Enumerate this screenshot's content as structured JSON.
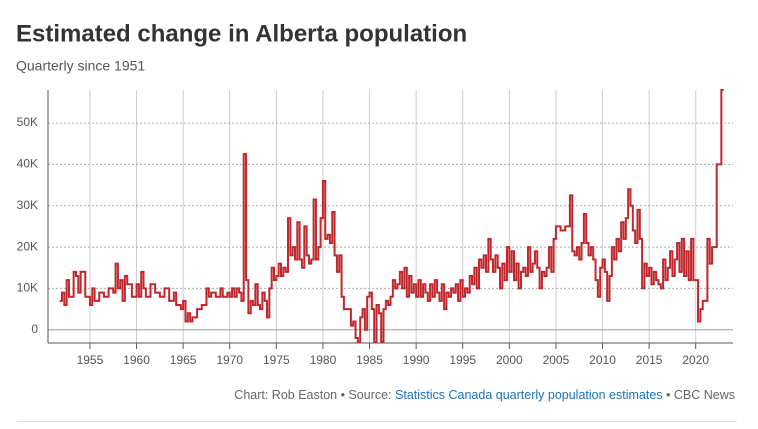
{
  "chart_data": {
    "type": "step-line",
    "title": "Estimated change in Alberta population",
    "subtitle": "Quarterly since 1951",
    "credit_prefix": "Chart: Rob Easton • Source:",
    "source_link": "Statistics Canada quarterly population estimates",
    "credit_suffix": "• CBC News",
    "color": "#c0272d",
    "grid": true,
    "xlim": [
      1950.5,
      2024
    ],
    "xticks": [
      1955,
      1960,
      1965,
      1970,
      1975,
      1980,
      1985,
      1990,
      1995,
      2000,
      2005,
      2010,
      2015,
      2020
    ],
    "ylim": [
      -3200,
      58000
    ],
    "yticks": [
      0,
      {
        "value": 10000,
        "label": "10K"
      },
      {
        "value": 20000,
        "label": "20K"
      },
      {
        "value": 30000,
        "label": "30K"
      },
      {
        "value": 40000,
        "label": "40K"
      },
      {
        "value": 50000,
        "label": "50K"
      }
    ],
    "x": [
      1951.75,
      1952,
      1952.25,
      1952.5,
      1952.75,
      1953,
      1953.25,
      1953.5,
      1953.75,
      1954,
      1954.5,
      1955,
      1955.25,
      1955.5,
      1956,
      1956.5,
      1957,
      1957.5,
      1957.75,
      1958,
      1958.25,
      1958.5,
      1958.75,
      1959,
      1959.5,
      1960,
      1960.25,
      1960.5,
      1960.75,
      1961,
      1961.5,
      1962,
      1962.5,
      1963,
      1963.5,
      1964,
      1964.25,
      1964.75,
      1965,
      1965.25,
      1965.5,
      1965.75,
      1966,
      1966.5,
      1967,
      1967.5,
      1967.75,
      1968,
      1968.5,
      1969,
      1969.25,
      1969.75,
      1970,
      1970.25,
      1970.5,
      1970.75,
      1971,
      1971.25,
      1971.5,
      1971.75,
      1972,
      1972.25,
      1972.5,
      1972.75,
      1973,
      1973.25,
      1973.5,
      1973.75,
      1974,
      1974.25,
      1974.5,
      1974.75,
      1975,
      1975.25,
      1975.5,
      1975.75,
      1976,
      1976.25,
      1976.5,
      1976.75,
      1977,
      1977.25,
      1977.5,
      1977.75,
      1978,
      1978.25,
      1978.5,
      1978.75,
      1979,
      1979.25,
      1979.5,
      1979.75,
      1980,
      1980.25,
      1980.5,
      1980.75,
      1981,
      1981.25,
      1981.5,
      1981.75,
      1982,
      1982.25,
      1982.75,
      1983,
      1983.25,
      1983.5,
      1983.75,
      1984,
      1984.25,
      1984.5,
      1984.75,
      1985,
      1985.25,
      1985.5,
      1985.75,
      1986,
      1986.25,
      1986.5,
      1986.75,
      1987,
      1987.25,
      1987.5,
      1987.75,
      1988,
      1988.25,
      1988.5,
      1988.75,
      1989,
      1989.25,
      1989.5,
      1989.75,
      1990,
      1990.25,
      1990.5,
      1990.75,
      1991,
      1991.25,
      1991.5,
      1991.75,
      1992,
      1992.25,
      1992.5,
      1992.75,
      1993,
      1993.25,
      1993.5,
      1993.75,
      1994,
      1994.25,
      1994.5,
      1994.75,
      1995,
      1995.25,
      1995.5,
      1995.75,
      1996,
      1996.25,
      1996.5,
      1996.75,
      1997,
      1997.25,
      1997.5,
      1997.75,
      1998,
      1998.25,
      1998.5,
      1998.75,
      1999,
      1999.25,
      1999.5,
      1999.75,
      2000,
      2000.25,
      2000.5,
      2000.75,
      2001,
      2001.25,
      2001.5,
      2001.75,
      2002,
      2002.25,
      2002.5,
      2002.75,
      2003,
      2003.25,
      2003.5,
      2003.75,
      2004,
      2004.25,
      2004.5,
      2004.75,
      2005,
      2005.5,
      2006,
      2006.5,
      2006.75,
      2007,
      2007.25,
      2007.5,
      2007.75,
      2008,
      2008.25,
      2008.5,
      2008.75,
      2009,
      2009.25,
      2009.5,
      2009.75,
      2010,
      2010.25,
      2010.5,
      2010.75,
      2011,
      2011.25,
      2011.5,
      2011.75,
      2012,
      2012.25,
      2012.5,
      2012.75,
      2013,
      2013.25,
      2013.5,
      2013.75,
      2014,
      2014.25,
      2014.5,
      2014.75,
      2015,
      2015.25,
      2015.5,
      2015.75,
      2016,
      2016.25,
      2016.5,
      2016.75,
      2017,
      2017.25,
      2017.5,
      2017.75,
      2018,
      2018.25,
      2018.5,
      2018.75,
      2019,
      2019.25,
      2019.5,
      2019.75,
      2020.25,
      2020.5,
      2020.75,
      2021,
      2021.25,
      2021.5,
      2021.75,
      2022.25,
      2022.75
    ],
    "values": [
      7000,
      9000,
      6000,
      12000,
      8000,
      8000,
      14000,
      13000,
      9000,
      14000,
      8000,
      6000,
      10000,
      7000,
      9000,
      8000,
      10000,
      9000,
      16000,
      10000,
      12000,
      7000,
      13000,
      11000,
      8000,
      11000,
      8000,
      14000,
      10000,
      8000,
      11000,
      9000,
      8000,
      10000,
      7000,
      9000,
      6000,
      5000,
      7000,
      2000,
      4000,
      2000,
      3000,
      5000,
      6000,
      10000,
      8000,
      9000,
      8000,
      10000,
      8000,
      9000,
      8000,
      10000,
      8000,
      10000,
      9000,
      7000,
      42500,
      12000,
      4000,
      7000,
      6000,
      11000,
      6000,
      5000,
      9000,
      7000,
      3000,
      10000,
      15000,
      12000,
      13000,
      16000,
      13000,
      15000,
      14000,
      27000,
      18000,
      20000,
      17000,
      26000,
      17000,
      15000,
      25000,
      18000,
      16000,
      17000,
      31500,
      17000,
      20000,
      27000,
      36000,
      22000,
      23000,
      21000,
      28500,
      18000,
      14000,
      18000,
      8000,
      5000,
      5000,
      1000,
      2000,
      -2000,
      -3000,
      3000,
      5000,
      0,
      8000,
      9000,
      5000,
      -3000,
      6000,
      4000,
      -3000,
      5000,
      7000,
      6000,
      8000,
      12000,
      10000,
      11000,
      14000,
      10000,
      15000,
      8000,
      13000,
      9000,
      11000,
      8000,
      12000,
      8000,
      11000,
      9000,
      7000,
      11000,
      8000,
      12000,
      9000,
      7000,
      11000,
      5000,
      9000,
      8000,
      10000,
      9000,
      11000,
      7000,
      12000,
      8000,
      10000,
      9000,
      13000,
      11000,
      15000,
      10000,
      17000,
      15000,
      18000,
      14000,
      22000,
      17000,
      14000,
      18000,
      15000,
      10000,
      16000,
      12000,
      20000,
      14000,
      19000,
      12000,
      16000,
      10000,
      14000,
      15000,
      13000,
      20000,
      14000,
      16000,
      19000,
      15000,
      10000,
      14000,
      13000,
      15000,
      20000,
      14000,
      22000,
      25000,
      24000,
      25000,
      32500,
      19000,
      18000,
      20000,
      17000,
      21000,
      28000,
      21000,
      18000,
      20000,
      17000,
      12000,
      8000,
      15000,
      17000,
      14000,
      7000,
      13000,
      20000,
      17000,
      22000,
      19000,
      26000,
      22000,
      27000,
      34000,
      30000,
      24000,
      21000,
      29000,
      22000,
      10000,
      16000,
      13000,
      15000,
      11000,
      14000,
      12000,
      11000,
      10000,
      17000,
      12000,
      15000,
      19000,
      13000,
      17000,
      21000,
      14000,
      22000,
      13000,
      19000,
      12000,
      22000,
      12000,
      2000,
      5000,
      7000,
      7000,
      22000,
      16000,
      20000,
      40000,
      58000
    ]
  }
}
